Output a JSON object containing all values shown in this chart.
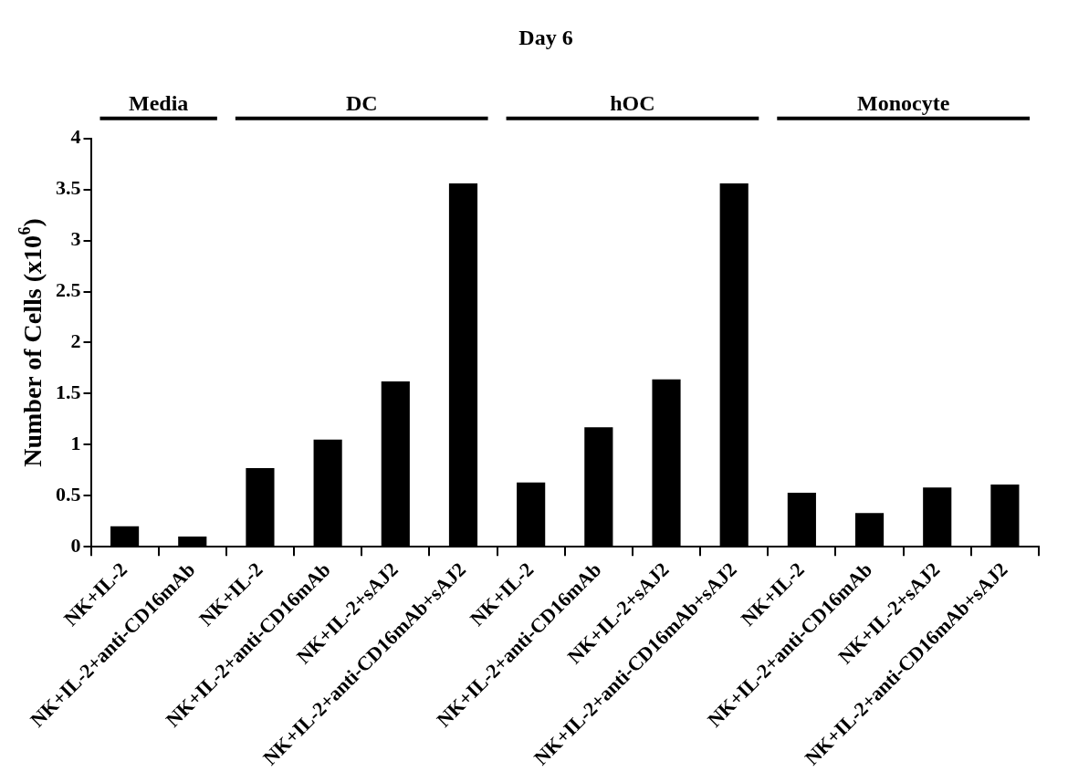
{
  "chart_data": {
    "type": "bar",
    "title": "Day 6",
    "ylabel": "Number of Cells (x10$^{6}$)",
    "categories": [
      "NK+IL-2",
      "NK+IL-2+anti-CD16mAb",
      "NK+IL-2",
      "NK+IL-2+anti-CD16mAb",
      "NK+IL-2+sAJ2",
      "NK+IL-2+anti-CD16mAb+sAJ2",
      "NK+IL-2",
      "NK+IL-2+anti-CD16mAb",
      "NK+IL-2+sAJ2",
      "NK+IL-2+anti-CD16mAb+sAJ2",
      "NK+IL-2",
      "NK+IL-2+anti-CD16mAb",
      "NK+IL-2+sAJ2",
      "NK+IL-2+anti-CD16mAb+sAJ2"
    ],
    "values": [
      0.2,
      0.1,
      0.77,
      1.05,
      1.62,
      3.56,
      0.63,
      1.17,
      1.64,
      3.56,
      0.53,
      0.33,
      0.58,
      0.61
    ],
    "color": "#000000",
    "annotations": [
      "Media",
      "DC",
      "hOC",
      "Monocyte"
    ],
    "ylim": [
      0,
      4
    ],
    "yticks": [
      0,
      0.5,
      1,
      1.5,
      2,
      2.5,
      3,
      3.5,
      4
    ],
    "grid": false,
    "legend": false
  }
}
